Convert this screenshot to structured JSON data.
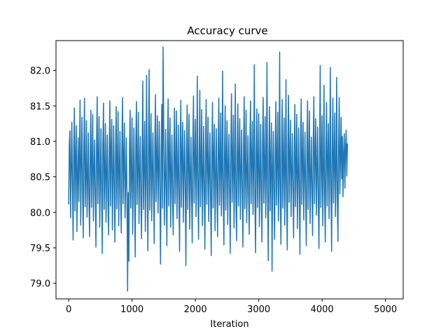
{
  "chart_data": {
    "type": "line",
    "title": "Accuracy curve",
    "xlabel": "Iteration",
    "ylabel": "",
    "xlim": [
      -200,
      5280
    ],
    "ylim": [
      78.78,
      82.42
    ],
    "x_ticks": [
      0,
      1000,
      2000,
      3000,
      4000,
      5000
    ],
    "x_tick_labels": [
      "0",
      "1000",
      "2000",
      "3000",
      "4000",
      "5000"
    ],
    "y_ticks": [
      79.0,
      79.5,
      80.0,
      80.5,
      81.0,
      81.5,
      82.0
    ],
    "y_tick_labels": [
      "79.0",
      "79.5",
      "80.0",
      "80.5",
      "81.0",
      "81.5",
      "82.0"
    ],
    "grid": false,
    "series": [
      {
        "color": "#1f77b4",
        "x_start": 0,
        "x_step": 10,
        "values": [
          80.11,
          80.95,
          81.15,
          79.92,
          80.62,
          81.27,
          80.35,
          79.61,
          80.88,
          81.47,
          80.02,
          80.74,
          81.22,
          79.73,
          80.49,
          81.05,
          80.15,
          80.81,
          81.58,
          79.82,
          80.66,
          81.34,
          80.27,
          79.64,
          80.95,
          81.61,
          80.08,
          80.52,
          81.29,
          79.93,
          80.43,
          81.12,
          80.19,
          79.66,
          80.84,
          81.44,
          80.07,
          80.69,
          81.38,
          79.88,
          80.56,
          81.02,
          80.23,
          79.51,
          80.91,
          81.63,
          80.12,
          80.72,
          81.35,
          79.79,
          80.44,
          81.18,
          80.29,
          79.42,
          80.97,
          81.54,
          80.04,
          80.62,
          81.25,
          79.86,
          80.51,
          81.09,
          80.16,
          79.68,
          80.79,
          81.57,
          80.09,
          80.88,
          81.31,
          79.75,
          80.47,
          81.22,
          80.31,
          79.58,
          80.86,
          81.49,
          80.05,
          80.67,
          81.42,
          79.81,
          80.58,
          81.14,
          80.21,
          79.71,
          80.93,
          81.62,
          80.12,
          80.75,
          81.26,
          79.92,
          80.37,
          81.05,
          80.25,
          78.89,
          80.28,
          79.31,
          80.88,
          81.44,
          80.06,
          80.59,
          81.33,
          79.69,
          80.45,
          81.19,
          80.24,
          79.37,
          80.99,
          81.56,
          80.11,
          80.66,
          81.41,
          79.84,
          80.52,
          81.07,
          80.18,
          79.63,
          80.82,
          81.85,
          80.04,
          80.71,
          81.28,
          79.73,
          80.49,
          81.93,
          80.32,
          79.46,
          80.94,
          82.01,
          80.03,
          80.78,
          81.39,
          79.88,
          80.55,
          81.12,
          80.26,
          79.56,
          80.92,
          81.66,
          80.15,
          80.69,
          81.36,
          79.99,
          80.63,
          81.28,
          80.21,
          79.27,
          80.86,
          81.52,
          80.06,
          82.33,
          81.22,
          79.82,
          80.44,
          81.17,
          80.29,
          79.53,
          80.97,
          81.6,
          80.09,
          80.74,
          81.33,
          79.79,
          80.57,
          81.09,
          80.17,
          79.68,
          80.84,
          81.47,
          80.12,
          80.65,
          81.43,
          79.91,
          80.51,
          81.23,
          80.22,
          79.45,
          80.95,
          81.58,
          80.07,
          80.76,
          81.27,
          79.86,
          80.6,
          81.15,
          80.31,
          79.25,
          80.89,
          81.51,
          80.04,
          80.68,
          81.38,
          79.76,
          80.46,
          81.06,
          80.19,
          79.57,
          80.98,
          81.64,
          80.13,
          80.73,
          81.31,
          79.94,
          80.55,
          81.92,
          80.27,
          79.62,
          80.83,
          81.72,
          80.08,
          80.62,
          81.45,
          79.81,
          80.49,
          81.21,
          80.24,
          79.48,
          80.96,
          81.59,
          80.11,
          80.7,
          81.34,
          79.87,
          80.58,
          81.12,
          80.16,
          79.39,
          80.87,
          81.55,
          80.06,
          80.79,
          81.24,
          79.74,
          80.43,
          81.18,
          80.33,
          79.66,
          80.92,
          81.61,
          80.1,
          80.64,
          81.4,
          79.95,
          80.53,
          81.99,
          80.21,
          79.54,
          80.85,
          81.5,
          80.03,
          80.72,
          81.29,
          79.83,
          80.61,
          81.1,
          80.26,
          79.42,
          80.99,
          81.67,
          80.14,
          80.67,
          81.37,
          79.78,
          80.48,
          81.81,
          80.19,
          79.6,
          80.82,
          81.53,
          80.09,
          80.75,
          81.32,
          79.9,
          80.56,
          81.16,
          80.3,
          79.51,
          80.9,
          81.63,
          80.05,
          80.66,
          81.44,
          79.85,
          80.5,
          81.08,
          80.23,
          79.69,
          80.94,
          81.57,
          80.12,
          80.77,
          81.28,
          79.97,
          80.59,
          82.08,
          80.17,
          79.43,
          80.86,
          81.46,
          80.07,
          80.69,
          81.39,
          79.8,
          80.45,
          81.24,
          80.28,
          79.58,
          80.97,
          81.62,
          80.13,
          80.63,
          81.35,
          79.92,
          80.54,
          82.11,
          80.2,
          79.32,
          80.83,
          81.49,
          80.02,
          80.71,
          81.26,
          79.17,
          80.6,
          81.14,
          80.25,
          79.62,
          80.91,
          81.56,
          80.1,
          80.74,
          81.41,
          79.88,
          80.47,
          82.26,
          80.22,
          79.55,
          80.88,
          81.59,
          80.06,
          80.68,
          81.33,
          79.82,
          80.52,
          81.87,
          80.18,
          79.47,
          80.95,
          81.65,
          80.14,
          80.76,
          81.3,
          79.94,
          80.57,
          81.11,
          80.29,
          79.64,
          80.84,
          81.52,
          80.08,
          80.65,
          81.38,
          79.77,
          80.49,
          81.19,
          80.24,
          79.41,
          80.96,
          81.6,
          80.11,
          80.72,
          81.27,
          79.89,
          80.55,
          81.13,
          80.21,
          79.53,
          80.89,
          81.57,
          80.04,
          80.69,
          81.43,
          79.84,
          80.46,
          81.06,
          80.27,
          79.67,
          80.98,
          81.63,
          80.12,
          80.75,
          81.32,
          79.96,
          80.61,
          81.2,
          80.16,
          79.49,
          80.85,
          82.07,
          80.07,
          80.66,
          81.36,
          79.81,
          80.5,
          81.79,
          80.23,
          79.58,
          80.93,
          81.55,
          80.09,
          80.73,
          81.25,
          79.91,
          80.58,
          82.04,
          80.3,
          79.45,
          80.87,
          81.61,
          80.13,
          80.67,
          81.4,
          79.94,
          80.53,
          81.9,
          80.19,
          79.59,
          80.92,
          81.62,
          80.26,
          80.74,
          81.34,
          80.47,
          81.07,
          80.22,
          80.85,
          81.11,
          80.34,
          80.89,
          81.16,
          80.51,
          80.97
        ]
      }
    ]
  }
}
